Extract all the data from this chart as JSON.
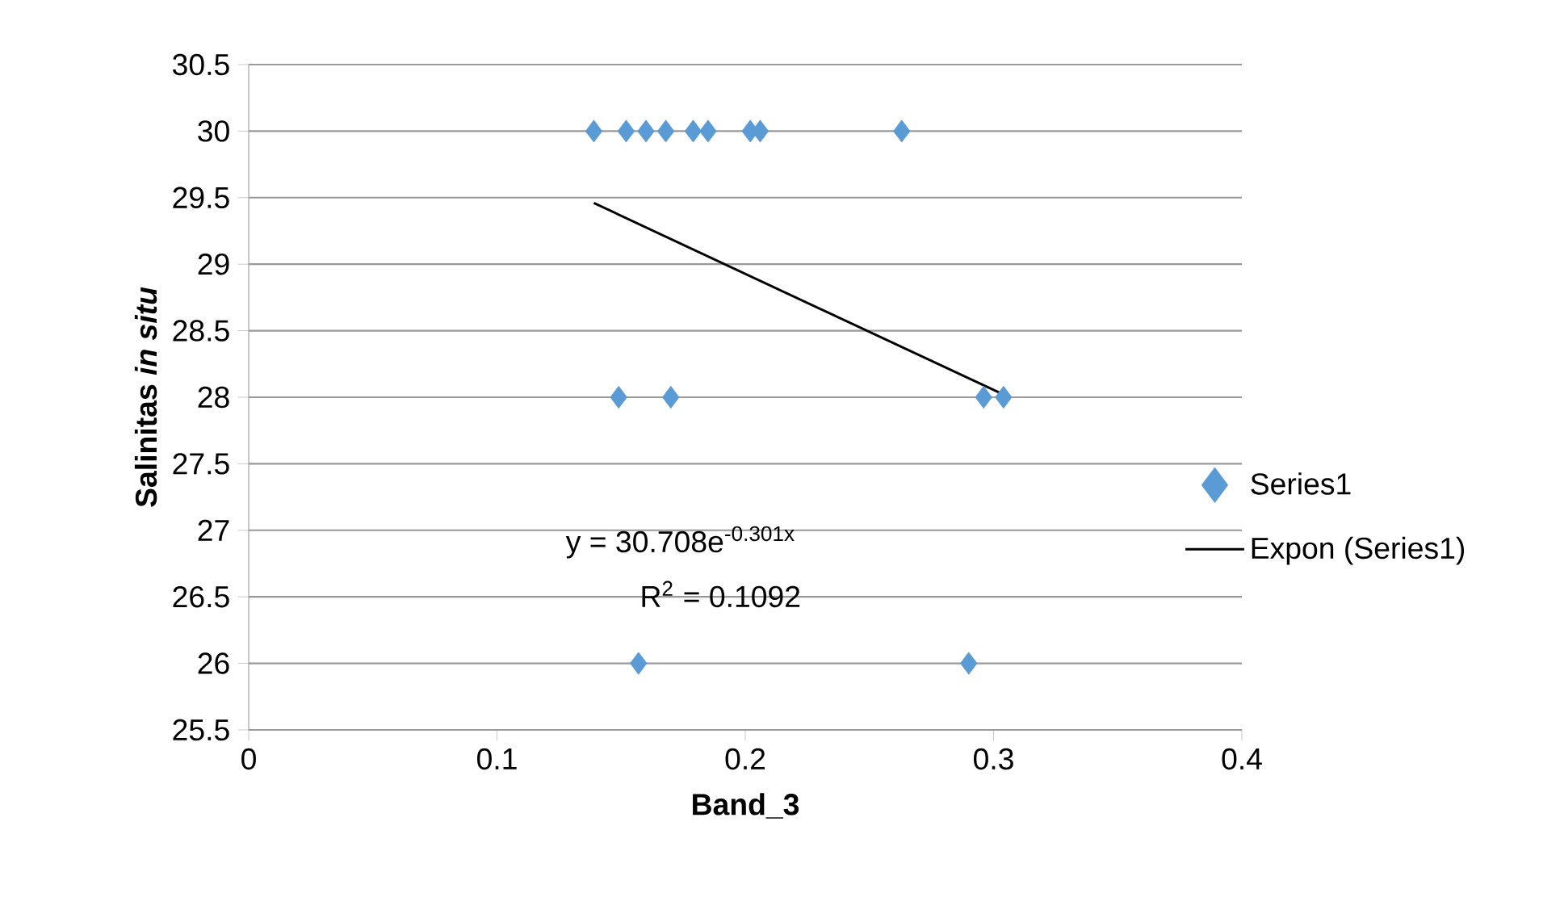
{
  "chart_data": {
    "type": "scatter",
    "xlabel": "Band_3",
    "ylabel": "Salinitas *in situ*",
    "xlim": [
      0,
      0.4
    ],
    "xticks": [
      0,
      0.1,
      0.2,
      0.3,
      0.4
    ],
    "ylim": [
      25.5,
      30.5
    ],
    "yticks": [
      25.5,
      26,
      26.5,
      27,
      27.5,
      28,
      28.5,
      29,
      29.5,
      30,
      30.5
    ],
    "grid": "y",
    "legend": "right",
    "marker": "diamond",
    "annotations": [
      "y = 30.708e$^{-0.301x}$",
      "R$^{2}$ = 0.1092"
    ],
    "series": [
      {
        "name": "Series1",
        "color": "#5b9bd5",
        "x": [
          0.139,
          0.152,
          0.16,
          0.168,
          0.179,
          0.185,
          0.202,
          0.206,
          0.263,
          0.149,
          0.17,
          0.296,
          0.304,
          0.157,
          0.29
        ],
        "values": [
          30,
          30,
          30,
          30,
          30,
          30,
          30,
          30,
          30,
          28,
          28,
          28,
          28,
          26,
          26
        ]
      },
      {
        "name": "Expon (Series1)",
        "type": "line",
        "color": "#000000",
        "marker": "none",
        "x": [
          0.139,
          0.304
        ],
        "values": [
          29.46,
          28.02
        ]
      }
    ]
  }
}
